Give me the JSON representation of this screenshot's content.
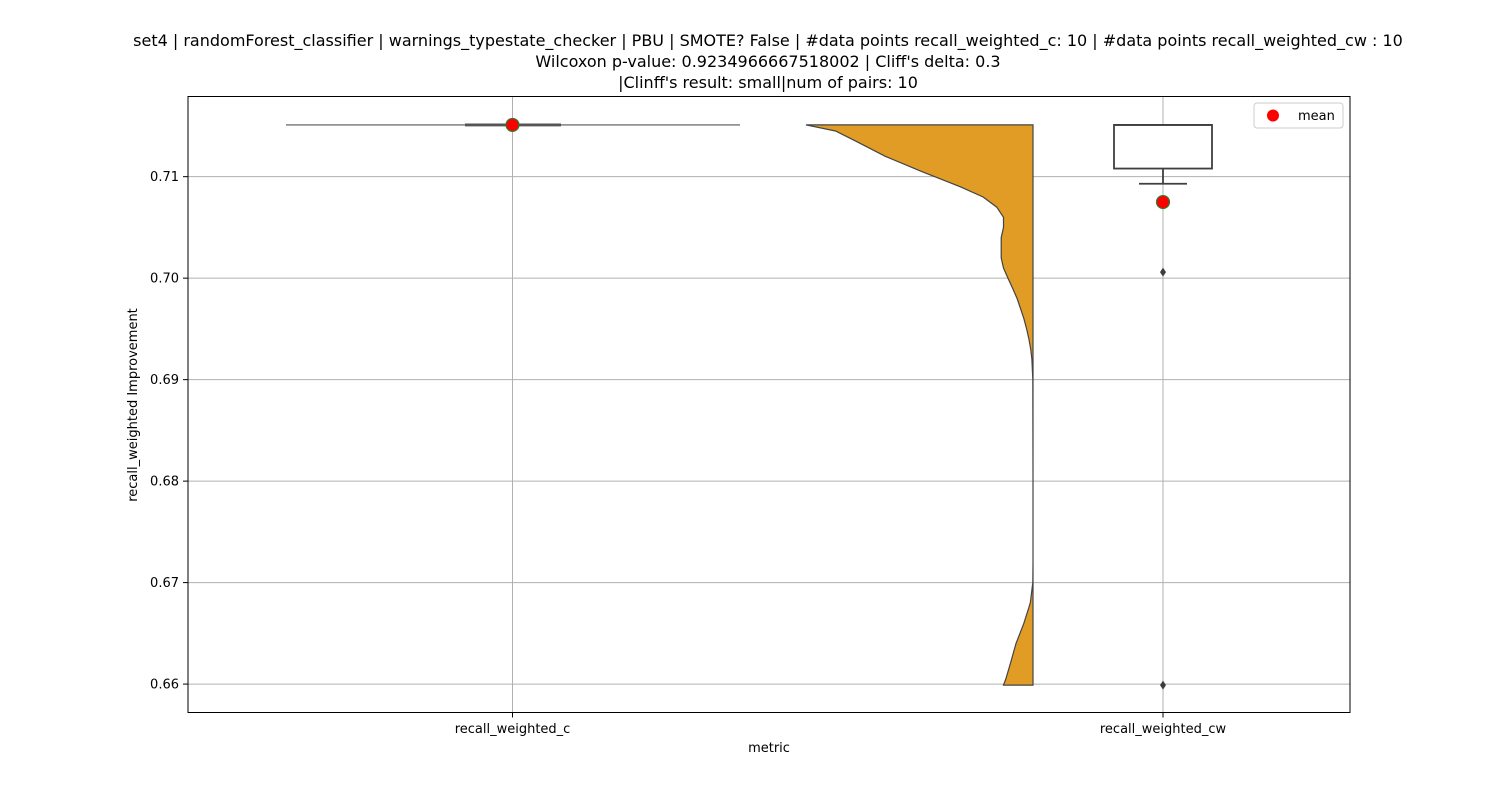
{
  "chart_data": {
    "type": "violin+box",
    "title_lines": [
      "set4 | randomForest_classifier | warnings_typestate_checker | PBU | SMOTE? False | #data points recall_weighted_c: 10 | #data points recall_weighted_cw : 10",
      "Wilcoxon p-value: 0.9234966667518002 | Cliff's delta: 0.3",
      "|Clinff's result: small|num of pairs: 10"
    ],
    "xlabel": "metric",
    "ylabel": "recall_weighted Improvement",
    "ylim": [
      0.6572,
      0.7179
    ],
    "yticks": [
      0.66,
      0.67,
      0.68,
      0.69,
      0.7,
      0.71
    ],
    "ytick_labels": [
      "0.66",
      "0.67",
      "0.68",
      "0.69",
      "0.70",
      "0.71"
    ],
    "categories": [
      "recall_weighted_c",
      "recall_weighted_cw"
    ],
    "grid": true,
    "legend": {
      "position": "top-right",
      "label": "mean"
    },
    "colors": {
      "violin": "#E09C24",
      "mean": "#FF0000",
      "mean_edge": "#2E7D32",
      "box_edge": "#3f3f3f",
      "grid": "#b0b0b0"
    },
    "series": [
      {
        "name": "recall_weighted_c",
        "values": [
          0.7151,
          0.7151,
          0.7151,
          0.7151,
          0.7151,
          0.7151,
          0.7151,
          0.7151,
          0.7151,
          0.7151
        ],
        "box": {
          "q1": 0.7151,
          "median": 0.7151,
          "q3": 0.7151,
          "whisker_low": 0.7151,
          "whisker_high": 0.7151
        },
        "mean": 0.7151,
        "outliers": []
      },
      {
        "name": "recall_weighted_cw",
        "violin_profile": [
          [
            0.7151,
            1.0
          ],
          [
            0.7145,
            0.87
          ],
          [
            0.7135,
            0.78
          ],
          [
            0.712,
            0.65
          ],
          [
            0.7105,
            0.49
          ],
          [
            0.709,
            0.32
          ],
          [
            0.708,
            0.22
          ],
          [
            0.707,
            0.16
          ],
          [
            0.706,
            0.13
          ],
          [
            0.705,
            0.13
          ],
          [
            0.704,
            0.14
          ],
          [
            0.703,
            0.14
          ],
          [
            0.702,
            0.14
          ],
          [
            0.701,
            0.13
          ],
          [
            0.7,
            0.11
          ],
          [
            0.699,
            0.09
          ],
          [
            0.698,
            0.07
          ],
          [
            0.697,
            0.055
          ],
          [
            0.696,
            0.04
          ],
          [
            0.695,
            0.028
          ],
          [
            0.694,
            0.018
          ],
          [
            0.693,
            0.01
          ],
          [
            0.692,
            0.005
          ],
          [
            0.69,
            0.001
          ],
          [
            0.68,
            0.0
          ],
          [
            0.672,
            0.0
          ],
          [
            0.67,
            0.001
          ],
          [
            0.668,
            0.012
          ],
          [
            0.666,
            0.04
          ],
          [
            0.664,
            0.075
          ],
          [
            0.662,
            0.1
          ],
          [
            0.6605,
            0.12
          ],
          [
            0.6599,
            0.13
          ]
        ],
        "box": {
          "q1": 0.7108,
          "median": 0.7151,
          "q3": 0.7151,
          "whisker_low": 0.7093,
          "whisker_high": 0.7151
        },
        "mean": 0.7075,
        "outliers": [
          0.7006,
          0.6599
        ]
      }
    ]
  }
}
